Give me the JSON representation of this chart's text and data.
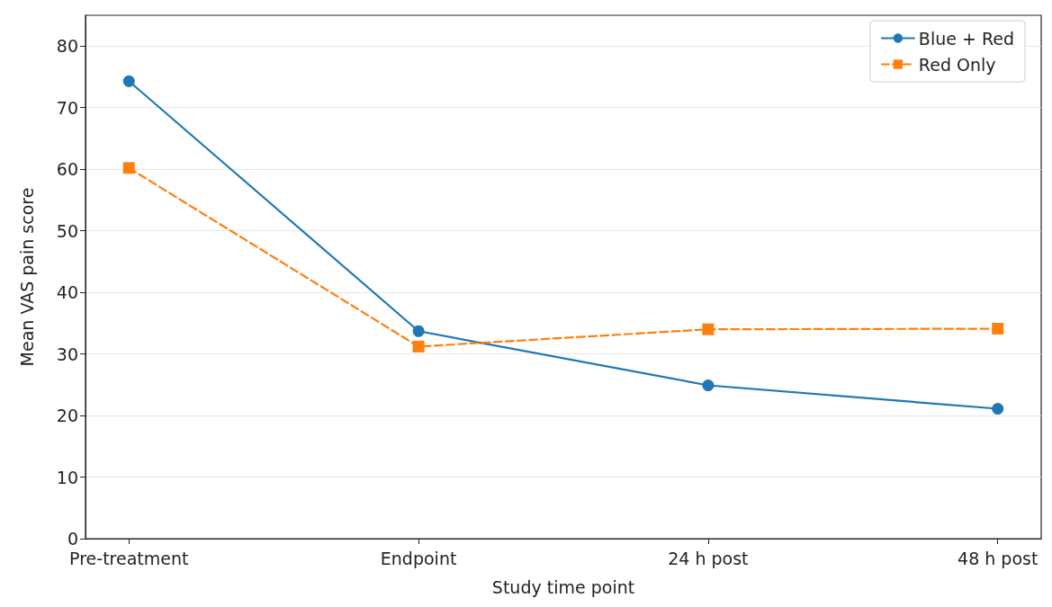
{
  "chart_data": {
    "type": "line",
    "xlabel": "Study time point",
    "ylabel": "Mean VAS pain score",
    "categories": [
      "Pre-treatment",
      "Endpoint",
      "24 h post",
      "48 h post"
    ],
    "series": [
      {
        "name": "Blue + Red",
        "color": "#1f77b4",
        "values": [
          74.3,
          33.7,
          24.9,
          21.1
        ],
        "marker": "circle",
        "line_style": "solid"
      },
      {
        "name": "Red Only",
        "color": "#ff7f0e",
        "values": [
          60.2,
          31.2,
          34.0,
          34.1
        ],
        "marker": "square",
        "line_style": "dashed"
      }
    ],
    "ylim": [
      0,
      85
    ],
    "yticks": [
      0,
      10,
      20,
      30,
      40,
      50,
      60,
      70,
      80
    ],
    "grid": "y",
    "legend": "top right"
  }
}
